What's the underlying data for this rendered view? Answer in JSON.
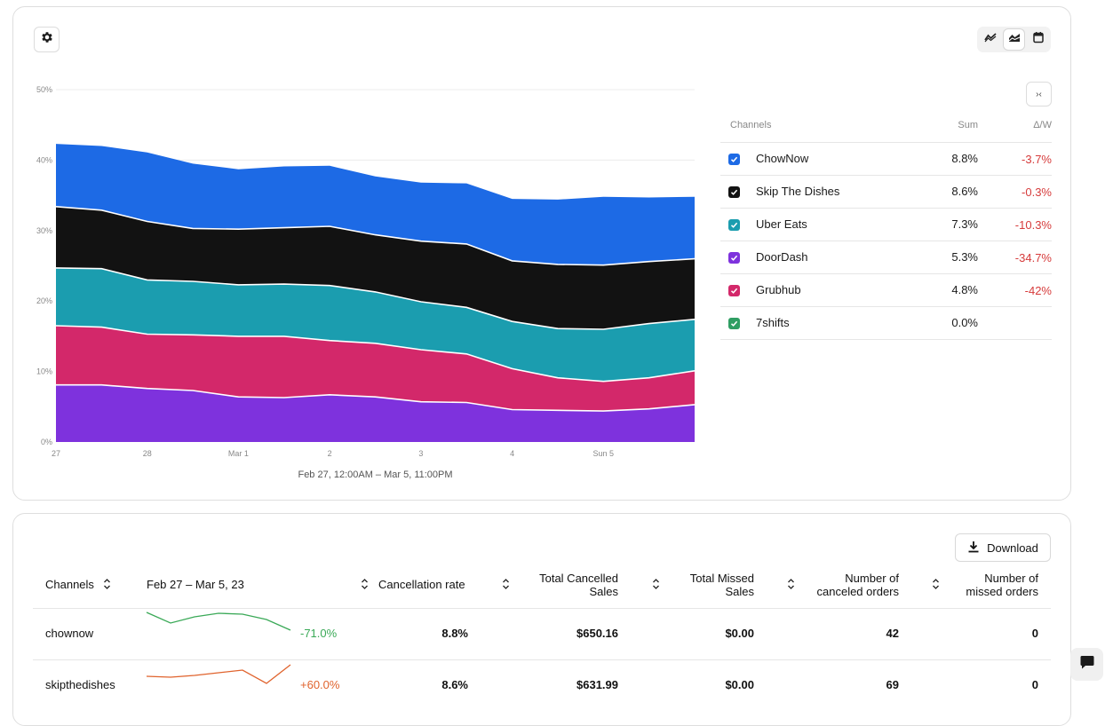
{
  "toolbar": {
    "settings_icon": "gear-icon",
    "view_modes": [
      {
        "name": "line-view",
        "icon": "line-chart-icon",
        "active": false
      },
      {
        "name": "stacked-area-view",
        "icon": "area-chart-icon",
        "active": true
      },
      {
        "name": "calendar-view",
        "icon": "calendar-icon",
        "active": false
      }
    ],
    "collapse_label": "›‹"
  },
  "chart_data": {
    "type": "area",
    "stacked": true,
    "title": "",
    "xlabel": "Feb 27, 12:00AM – Mar 5, 11:00PM",
    "ylabel": "",
    "x_ticks": [
      "27",
      "28",
      "Mar 1",
      "2",
      "3",
      "4",
      "Sun 5"
    ],
    "y_ticks": [
      "0%",
      "10%",
      "20%",
      "30%",
      "40%",
      "50%"
    ],
    "ylim": [
      0,
      50
    ],
    "y_unit": "%",
    "grid": true,
    "x": [
      "Feb 27 00:00",
      "Feb 27 12:00",
      "Feb 28 00:00",
      "Feb 28 12:00",
      "Mar 1 00:00",
      "Mar 1 12:00",
      "Mar 2 00:00",
      "Mar 2 12:00",
      "Mar 3 00:00",
      "Mar 3 12:00",
      "Mar 4 00:00",
      "Mar 4 12:00",
      "Mar 5 00:00",
      "Mar 5 12:00",
      "Mar 5 23:00"
    ],
    "series": [
      {
        "name": "DoorDash",
        "color": "#7e32dd",
        "values": [
          8.1,
          8.1,
          7.6,
          7.3,
          6.4,
          6.3,
          6.7,
          6.4,
          5.7,
          5.6,
          4.6,
          4.5,
          4.4,
          4.7,
          5.3
        ]
      },
      {
        "name": "Grubhub",
        "color": "#d3286a",
        "values": [
          8.4,
          8.2,
          7.7,
          7.9,
          8.6,
          8.7,
          7.7,
          7.6,
          7.4,
          6.9,
          5.8,
          4.6,
          4.2,
          4.4,
          4.8
        ]
      },
      {
        "name": "Uber Eats",
        "color": "#1b9daf",
        "values": [
          8.2,
          8.3,
          7.7,
          7.6,
          7.3,
          7.4,
          7.8,
          7.3,
          6.8,
          6.6,
          6.7,
          7.0,
          7.4,
          7.7,
          7.3
        ]
      },
      {
        "name": "Skip The Dishes",
        "color": "#121212",
        "values": [
          8.7,
          8.3,
          8.3,
          7.5,
          7.9,
          8.0,
          8.4,
          8.1,
          8.6,
          9.0,
          8.6,
          9.1,
          9.1,
          8.8,
          8.6
        ]
      },
      {
        "name": "ChowNow",
        "color": "#1d6ae5",
        "values": [
          8.9,
          9.1,
          9.8,
          9.2,
          8.5,
          8.7,
          8.6,
          8.3,
          8.3,
          8.6,
          8.8,
          9.2,
          9.7,
          9.1,
          8.8
        ]
      }
    ]
  },
  "legend": {
    "headers": {
      "channel": "Channels",
      "sum": "Sum",
      "delta": "Δ/W"
    },
    "rows": [
      {
        "name": "ChowNow",
        "sum": "8.8%",
        "delta": "-3.7%",
        "color": "#1d6ae5"
      },
      {
        "name": "Skip The Dishes",
        "sum": "8.6%",
        "delta": "-0.3%",
        "color": "#121212"
      },
      {
        "name": "Uber Eats",
        "sum": "7.3%",
        "delta": "-10.3%",
        "color": "#1b9daf"
      },
      {
        "name": "DoorDash",
        "sum": "5.3%",
        "delta": "-34.7%",
        "color": "#7e32dd"
      },
      {
        "name": "Grubhub",
        "sum": "4.8%",
        "delta": "-42%",
        "color": "#d3286a"
      },
      {
        "name": "7shifts",
        "sum": "0.0%",
        "delta": "",
        "color": "#2f9e63"
      }
    ]
  },
  "table": {
    "download_label": "Download",
    "headers": {
      "channels": "Channels",
      "period": "Feb 27 – Mar 5, 23",
      "cancellation_rate": "Cancellation rate",
      "total_cancelled_1": "Total Cancelled",
      "total_cancelled_2": "Sales",
      "total_missed_1": "Total Missed",
      "total_missed_2": "Sales",
      "num_canceled_1": "Number of",
      "num_canceled_2": "canceled orders",
      "num_missed_1": "Number of",
      "num_missed_2": "missed orders"
    },
    "rows": [
      {
        "channel": "chownow",
        "trend": "-71.0%",
        "trend_color": "#3aa957",
        "spark": [
          30,
          18,
          25,
          29,
          28,
          22,
          10
        ],
        "cancellation_rate": "8.8%",
        "total_cancelled_sales": "$650.16",
        "total_missed_sales": "$0.00",
        "canceled_orders": "42",
        "missed_orders": "0"
      },
      {
        "channel": "skipthedishes",
        "trend": "+60.0%",
        "trend_color": "#e0632d",
        "spark": [
          16,
          15,
          17,
          20,
          23,
          8,
          29
        ],
        "cancellation_rate": "8.6%",
        "total_cancelled_sales": "$631.99",
        "total_missed_sales": "$0.00",
        "canceled_orders": "69",
        "missed_orders": "0"
      }
    ]
  },
  "chat": {
    "icon": "chat-bubble-icon"
  }
}
